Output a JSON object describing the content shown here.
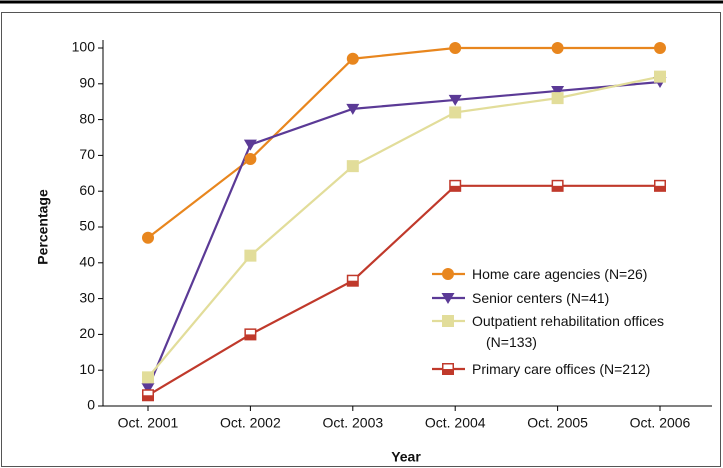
{
  "chart_data": {
    "type": "line",
    "x_label": "Year",
    "y_label": "Percentage",
    "categories": [
      "Oct. 2001",
      "Oct. 2002",
      "Oct. 2003",
      "Oct. 2004",
      "Oct. 2005",
      "Oct. 2006"
    ],
    "series": [
      {
        "name": "Home care agencies (N=26)",
        "color": "#e8861e",
        "marker": "circle",
        "values": [
          47,
          69,
          97,
          100,
          100,
          100
        ]
      },
      {
        "name": "Senior centers (N=41)",
        "color": "#5b3a96",
        "marker": "triangle-down",
        "values": [
          5,
          73,
          83,
          85.5,
          88,
          90.5
        ]
      },
      {
        "name": "Outpatient rehabilitation offices (N=133)",
        "color": "#e2dd9a",
        "marker": "square",
        "values": [
          8,
          42,
          67,
          82,
          86,
          92
        ]
      },
      {
        "name": "Primary care offices (N=212)",
        "color": "#c0392b",
        "marker": "half-square",
        "values": [
          3,
          20,
          35,
          61.5,
          61.5,
          61.5
        ]
      }
    ],
    "ylim": [
      0,
      100
    ],
    "yticks": [
      0,
      10,
      20,
      30,
      40,
      50,
      60,
      70,
      80,
      90,
      100
    ],
    "legend": "lower right"
  }
}
